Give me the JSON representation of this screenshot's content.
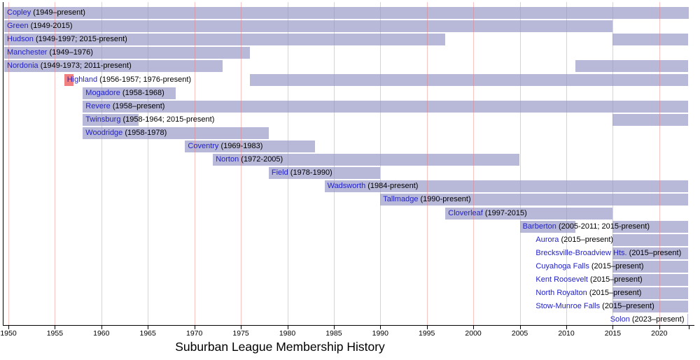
{
  "title": "Suburban League Membership History",
  "colors": {
    "bar": "#b8b8d8",
    "highlight_bar": "#f08080",
    "gridline": "rgba(242,116,116,0.42)",
    "axis": "#000000",
    "link_blue": "#2222cc",
    "text": "#000000",
    "background": "#ffffff"
  },
  "chart_data": {
    "type": "bar",
    "subtype": "gantt-timeline",
    "title": "Suburban League Membership History",
    "xlabel": "",
    "ylabel": "",
    "grid": "vertical 5-year pink gridlines",
    "legend": "none",
    "x_ticks": [
      1950,
      1955,
      1960,
      1965,
      1970,
      1975,
      1980,
      1985,
      1990,
      1995,
      2000,
      2005,
      2010,
      2015,
      2020
    ],
    "x_range_start": 1949,
    "x_range_end": "present (2023)",
    "series": [
      {
        "name": "Copley",
        "years_label": "(1949–present)",
        "periods": [
          {
            "start": 1949,
            "end": "present"
          }
        ]
      },
      {
        "name": "Green",
        "years_label": "(1949-2015)",
        "periods": [
          {
            "start": 1949,
            "end": 2015
          }
        ]
      },
      {
        "name": "Hudson",
        "years_label": "(1949-1997; 2015-present)",
        "periods": [
          {
            "start": 1949,
            "end": 1997
          },
          {
            "start": 2015,
            "end": "present"
          }
        ]
      },
      {
        "name": "Manchester",
        "years_label": "(1949–1976)",
        "periods": [
          {
            "start": 1949,
            "end": 1976
          }
        ]
      },
      {
        "name": "Nordonia",
        "years_label": "(1949-1973; 2011-present)",
        "periods": [
          {
            "start": 1949,
            "end": 1973
          },
          {
            "start": 2011,
            "end": "present"
          }
        ]
      },
      {
        "name": "Highland",
        "years_label": "(1956-1957; 1976-present)",
        "periods": [
          {
            "start": 1956,
            "end": 1957,
            "color": "#f08080"
          },
          {
            "start": 1976,
            "end": "present"
          }
        ]
      },
      {
        "name": "Mogadore",
        "years_label": "(1958-1968)",
        "periods": [
          {
            "start": 1958,
            "end": 1968
          }
        ]
      },
      {
        "name": "Revere",
        "years_label": "(1958–present)",
        "periods": [
          {
            "start": 1958,
            "end": "present"
          }
        ]
      },
      {
        "name": "Twinsburg",
        "years_label": "(1958-1964; 2015-present)",
        "periods": [
          {
            "start": 1958,
            "end": 1964
          },
          {
            "start": 2015,
            "end": "present"
          }
        ]
      },
      {
        "name": "Woodridge",
        "years_label": "(1958-1978)",
        "periods": [
          {
            "start": 1958,
            "end": 1978
          }
        ]
      },
      {
        "name": "Coventry",
        "years_label": "(1969-1983)",
        "periods": [
          {
            "start": 1969,
            "end": 1983
          }
        ]
      },
      {
        "name": "Norton",
        "years_label": "(1972-2005)",
        "periods": [
          {
            "start": 1972,
            "end": 2005
          }
        ]
      },
      {
        "name": "Field",
        "years_label": "(1978-1990)",
        "periods": [
          {
            "start": 1978,
            "end": 1990
          }
        ]
      },
      {
        "name": "Wadsworth",
        "years_label": "(1984-present)",
        "periods": [
          {
            "start": 1984,
            "end": "present"
          }
        ]
      },
      {
        "name": "Tallmadge",
        "years_label": "(1990-present)",
        "periods": [
          {
            "start": 1990,
            "end": "present"
          }
        ]
      },
      {
        "name": "Cloverleaf",
        "years_label": "(1997-2015)",
        "periods": [
          {
            "start": 1997,
            "end": 2015
          }
        ]
      },
      {
        "name": "Barberton",
        "years_label": "(2005-2011; 2015-present)",
        "periods": [
          {
            "start": 2005,
            "end": 2011
          },
          {
            "start": 2015,
            "end": "present"
          }
        ]
      },
      {
        "name": "Aurora",
        "years_label": "(2015–present)",
        "periods": [
          {
            "start": 2015,
            "end": "present"
          }
        ],
        "label_shift": -110
      },
      {
        "name": "Brecksville-Broadview Hts.",
        "years_label": "(2015–present)",
        "periods": [
          {
            "start": 2015,
            "end": "present"
          }
        ],
        "label_shift": -110
      },
      {
        "name": "Cuyahoga Falls",
        "years_label": "(2015–present)",
        "periods": [
          {
            "start": 2015,
            "end": "present"
          }
        ],
        "label_shift": -110
      },
      {
        "name": "Kent Roosevelt",
        "years_label": "(2015–present)",
        "periods": [
          {
            "start": 2015,
            "end": "present"
          }
        ],
        "label_shift": -110
      },
      {
        "name": "North Royalton",
        "years_label": "(2015–present)",
        "periods": [
          {
            "start": 2015,
            "end": "present"
          }
        ],
        "label_shift": -110
      },
      {
        "name": "Stow-Munroe Falls",
        "years_label": "(2015–present)",
        "periods": [
          {
            "start": 2015,
            "end": "present"
          }
        ],
        "label_shift": -110
      },
      {
        "name": "Solon",
        "years_label": "(2023–present)",
        "periods": [
          {
            "start": 2023,
            "end": "present"
          }
        ],
        "label_shift": -110
      }
    ]
  }
}
